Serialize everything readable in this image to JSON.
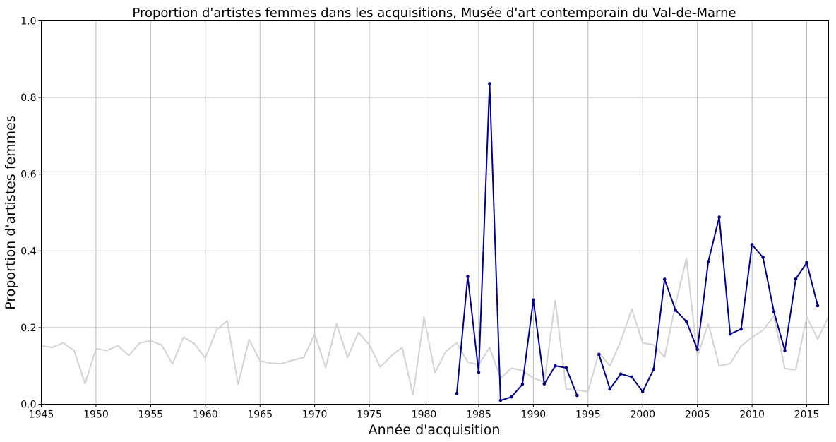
{
  "chart_data": {
    "type": "line",
    "title": "Proportion d'artistes femmes dans les acquisitions, Musée d'art contemporain du Val-de-Marne",
    "xlabel": "Année d'acquisition",
    "ylabel": "Proportion d'artistes femmes",
    "xlim": [
      1945,
      2017
    ],
    "ylim": [
      0,
      1.0
    ],
    "x_ticks": [
      1945,
      1950,
      1955,
      1960,
      1965,
      1970,
      1975,
      1980,
      1985,
      1990,
      1995,
      2000,
      2005,
      2010,
      2015
    ],
    "y_ticks": [
      0.0,
      0.2,
      0.4,
      0.6,
      0.8,
      1.0
    ],
    "y_tick_labels": [
      "0.0",
      "0.2",
      "0.4",
      "0.6",
      "0.8",
      "1.0"
    ],
    "grid": true,
    "colors": {
      "background_series": "#d3d3d3",
      "museum_series": "#00008b"
    },
    "series": [
      {
        "style": "background",
        "color": "#d3d3d3",
        "points": [
          [
            1945,
            0.152
          ],
          [
            1946,
            0.148
          ],
          [
            1947,
            0.16
          ],
          [
            1948,
            0.14
          ],
          [
            1949,
            0.053
          ],
          [
            1950,
            0.145
          ],
          [
            1951,
            0.14
          ],
          [
            1952,
            0.153
          ],
          [
            1953,
            0.127
          ],
          [
            1954,
            0.16
          ],
          [
            1955,
            0.165
          ],
          [
            1956,
            0.155
          ],
          [
            1957,
            0.105
          ],
          [
            1958,
            0.175
          ],
          [
            1959,
            0.158
          ],
          [
            1960,
            0.12
          ],
          [
            1961,
            0.193
          ],
          [
            1962,
            0.218
          ],
          [
            1963,
            0.052
          ],
          [
            1964,
            0.169
          ],
          [
            1965,
            0.113
          ],
          [
            1966,
            0.107
          ],
          [
            1967,
            0.106
          ],
          [
            1968,
            0.115
          ],
          [
            1969,
            0.122
          ],
          [
            1970,
            0.183
          ],
          [
            1971,
            0.096
          ],
          [
            1972,
            0.21
          ],
          [
            1973,
            0.122
          ],
          [
            1974,
            0.187
          ],
          [
            1975,
            0.155
          ],
          [
            1976,
            0.097
          ],
          [
            1977,
            0.126
          ],
          [
            1978,
            0.148
          ],
          [
            1979,
            0.024
          ],
          [
            1980,
            0.228
          ],
          [
            1981,
            0.082
          ],
          [
            1982,
            0.138
          ],
          [
            1983,
            0.16
          ],
          [
            1984,
            0.11
          ],
          [
            1985,
            0.103
          ],
          [
            1986,
            0.148
          ],
          [
            1987,
            0.068
          ],
          [
            1988,
            0.094
          ],
          [
            1989,
            0.088
          ],
          [
            1990,
            0.068
          ],
          [
            1991,
            0.058
          ],
          [
            1992,
            0.27
          ],
          [
            1993,
            0.04
          ],
          [
            1994,
            0.037
          ],
          [
            1995,
            0.033
          ],
          [
            1996,
            0.135
          ],
          [
            1997,
            0.1
          ],
          [
            1998,
            0.165
          ],
          [
            1999,
            0.248
          ],
          [
            2000,
            0.16
          ],
          [
            2001,
            0.155
          ],
          [
            2002,
            0.123
          ],
          [
            2003,
            0.26
          ],
          [
            2004,
            0.38
          ],
          [
            2005,
            0.125
          ],
          [
            2006,
            0.21
          ],
          [
            2007,
            0.1
          ],
          [
            2008,
            0.106
          ],
          [
            2009,
            0.152
          ],
          [
            2010,
            0.175
          ],
          [
            2011,
            0.193
          ],
          [
            2012,
            0.23
          ],
          [
            2013,
            0.093
          ],
          [
            2014,
            0.09
          ],
          [
            2015,
            0.228
          ],
          [
            2016,
            0.17
          ],
          [
            2017,
            0.228
          ]
        ]
      },
      {
        "style": "museum",
        "color": "#00008b",
        "segments": [
          [
            [
              1983,
              0.028
            ],
            [
              1984,
              0.333
            ],
            [
              1985,
              0.083
            ],
            [
              1986,
              0.836
            ],
            [
              1987,
              0.01
            ],
            [
              1988,
              0.019
            ],
            [
              1989,
              0.052
            ],
            [
              1990,
              0.272
            ],
            [
              1991,
              0.053
            ],
            [
              1992,
              0.1
            ],
            [
              1993,
              0.095
            ],
            [
              1994,
              0.023
            ]
          ],
          [
            [
              1996,
              0.13
            ],
            [
              1997,
              0.04
            ],
            [
              1998,
              0.079
            ],
            [
              1999,
              0.071
            ],
            [
              2000,
              0.033
            ],
            [
              2001,
              0.091
            ],
            [
              2002,
              0.326
            ],
            [
              2003,
              0.245
            ],
            [
              2004,
              0.216
            ],
            [
              2005,
              0.143
            ],
            [
              2006,
              0.372
            ],
            [
              2007,
              0.488
            ],
            [
              2008,
              0.183
            ],
            [
              2009,
              0.196
            ],
            [
              2010,
              0.416
            ],
            [
              2011,
              0.383
            ],
            [
              2012,
              0.241
            ],
            [
              2013,
              0.14
            ],
            [
              2014,
              0.327
            ],
            [
              2015,
              0.369
            ],
            [
              2016,
              0.257
            ]
          ]
        ]
      }
    ]
  }
}
